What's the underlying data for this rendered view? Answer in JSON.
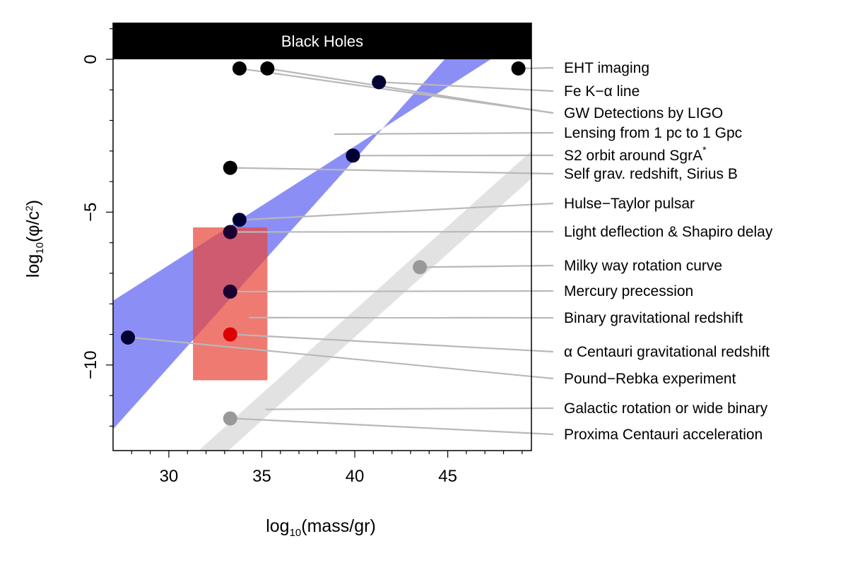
{
  "chart_data": {
    "type": "scatter",
    "xlabel": "log10(mass/gr)",
    "ylabel": "log10(φ/c²)",
    "xlim": [
      27,
      49.5
    ],
    "ylim": [
      -12.8,
      1.2
    ],
    "x_ticks": [
      30,
      35,
      40,
      45
    ],
    "y_ticks": [
      0,
      -5,
      -10
    ],
    "black_hole_band": {
      "label": "Black Holes",
      "y_range": [
        0,
        1.2
      ],
      "color": "#000000"
    },
    "regions": [
      {
        "name": "Lensing from 1 pc to 1 Gpc",
        "type": "band",
        "color": "#8b8ff5",
        "corners": [
          [
            27,
            -7.9
          ],
          [
            27,
            -12.1
          ],
          [
            46.6,
            1.2
          ],
          [
            50.4,
            1.2
          ]
        ]
      },
      {
        "name": "Galactic rotation or wide binary",
        "type": "band",
        "color": "#e2e2e2",
        "corners": [
          [
            31.6,
            -12.8
          ],
          [
            33.2,
            -12.8
          ],
          [
            49.5,
            -3.9
          ],
          [
            49.5,
            -3.0
          ]
        ]
      },
      {
        "name": "Binary gravitational redshift",
        "type": "rect",
        "color": "rgba(232,70,60,0.72)",
        "x_range": [
          31.3,
          35.3
        ],
        "y_range": [
          -10.5,
          -5.5
        ]
      }
    ],
    "points": [
      {
        "x": 33.8,
        "y": -0.3,
        "color": "#000000"
      },
      {
        "x": 35.3,
        "y": -0.3,
        "color": "#000000"
      },
      {
        "x": 48.8,
        "y": -0.3,
        "color": "#000000"
      },
      {
        "x": 41.3,
        "y": -0.75,
        "color": "#000033"
      },
      {
        "x": 39.9,
        "y": -3.15,
        "color": "#000033"
      },
      {
        "x": 33.3,
        "y": -3.55,
        "color": "#000000"
      },
      {
        "x": 33.8,
        "y": -5.25,
        "color": "#000033"
      },
      {
        "x": 33.3,
        "y": -5.65,
        "color": "#1a0030"
      },
      {
        "x": 43.5,
        "y": -6.8,
        "color": "#999999"
      },
      {
        "x": 33.3,
        "y": -7.6,
        "color": "#1a0030"
      },
      {
        "x": 33.3,
        "y": -9.0,
        "color": "#dd0000"
      },
      {
        "x": 27.8,
        "y": -9.1,
        "color": "#000033"
      },
      {
        "x": 33.3,
        "y": -11.75,
        "color": "#999999"
      }
    ],
    "annotations": [
      {
        "label": "EHT imaging",
        "anchor": [
          49.0,
          -0.3
        ]
      },
      {
        "label": "Fe K−α line",
        "anchor": [
          41.5,
          -0.75
        ]
      },
      {
        "label": "GW Detections by LIGO",
        "anchor": [
          33.8,
          -0.3
        ],
        "extra_anchor": [
          35.3,
          -0.3
        ]
      },
      {
        "label": "Lensing from 1 pc to 1 Gpc",
        "anchor": [
          38.9,
          -2.45
        ]
      },
      {
        "label": "S2 orbit around SgrA",
        "superscript": "*",
        "anchor": [
          40.1,
          -3.15
        ]
      },
      {
        "label": "Self grav. redshift, Sirius B",
        "anchor": [
          33.5,
          -3.55
        ]
      },
      {
        "label": "Hulse−Taylor pulsar",
        "anchor": [
          34.0,
          -5.25
        ]
      },
      {
        "label": "Light deflection & Shapiro delay",
        "anchor": [
          33.5,
          -5.65
        ]
      },
      {
        "label": "Milky way rotation curve",
        "anchor": [
          43.7,
          -6.8
        ]
      },
      {
        "label": "Mercury precession",
        "anchor": [
          33.5,
          -7.6
        ]
      },
      {
        "label": "Binary gravitational redshift",
        "anchor": [
          34.3,
          -8.45
        ]
      },
      {
        "label": "α Centauri gravitational redshift",
        "anchor": [
          33.5,
          -9.0
        ]
      },
      {
        "label": "Pound−Rebka experiment",
        "anchor": [
          28.0,
          -9.1
        ]
      },
      {
        "label": "Galactic rotation or wide binary",
        "anchor": [
          35.2,
          -11.45
        ]
      },
      {
        "label": "Proxima Centauri acceleration",
        "anchor": [
          33.5,
          -11.75
        ]
      }
    ]
  }
}
